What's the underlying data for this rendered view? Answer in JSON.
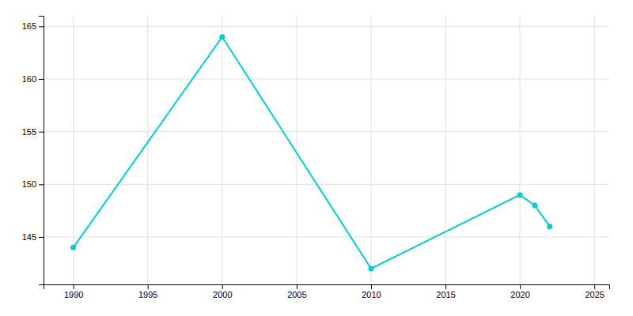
{
  "chart_data": {
    "type": "line",
    "x": [
      1990,
      2000,
      2010,
      2020,
      2021,
      2022
    ],
    "values": [
      144,
      164,
      142,
      149,
      148,
      146
    ],
    "color": "#00CED1",
    "marker": "circle",
    "xlim": [
      1988,
      2026
    ],
    "ylim": [
      140.5,
      166
    ],
    "xticks": [
      1990,
      1995,
      2000,
      2005,
      2010,
      2015,
      2020,
      2025
    ],
    "yticks": [
      145,
      150,
      155,
      160,
      165
    ],
    "grid": true
  }
}
